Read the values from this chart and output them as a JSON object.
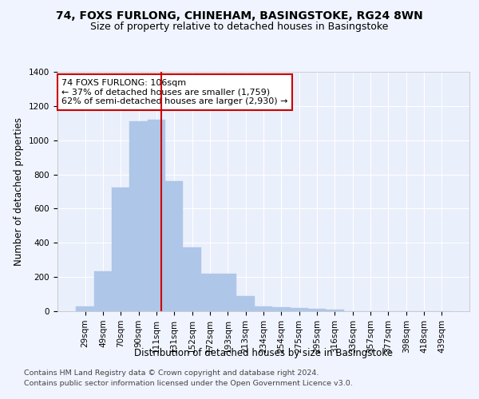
{
  "title": "74, FOXS FURLONG, CHINEHAM, BASINGSTOKE, RG24 8WN",
  "subtitle": "Size of property relative to detached houses in Basingstoke",
  "xlabel": "Distribution of detached houses by size in Basingstoke",
  "ylabel": "Number of detached properties",
  "footnote1": "Contains HM Land Registry data © Crown copyright and database right 2024.",
  "footnote2": "Contains public sector information licensed under the Open Government Licence v3.0.",
  "annotation_line1": "74 FOXS FURLONG: 106sqm",
  "annotation_line2": "← 37% of detached houses are smaller (1,759)",
  "annotation_line3": "62% of semi-detached houses are larger (2,930) →",
  "bar_labels": [
    "29sqm",
    "49sqm",
    "70sqm",
    "90sqm",
    "111sqm",
    "131sqm",
    "152sqm",
    "172sqm",
    "193sqm",
    "213sqm",
    "234sqm",
    "254sqm",
    "275sqm",
    "295sqm",
    "316sqm",
    "336sqm",
    "357sqm",
    "377sqm",
    "398sqm",
    "418sqm",
    "439sqm"
  ],
  "bar_heights": [
    30,
    235,
    725,
    1110,
    1120,
    760,
    375,
    220,
    220,
    90,
    30,
    25,
    20,
    15,
    10,
    0,
    0,
    0,
    0,
    0,
    0
  ],
  "bar_color": "#aec6e8",
  "bar_edgecolor": "#aec6e8",
  "vline_x": 4.27,
  "vline_color": "#cc0000",
  "ylim": [
    0,
    1400
  ],
  "yticks": [
    0,
    200,
    400,
    600,
    800,
    1000,
    1200,
    1400
  ],
  "background_color": "#f0f4fe",
  "axes_bg_color": "#eaeffc",
  "grid_color": "#ffffff",
  "title_fontsize": 10,
  "subtitle_fontsize": 9,
  "axis_label_fontsize": 8.5,
  "tick_fontsize": 7.5,
  "annotation_fontsize": 8,
  "footnote_fontsize": 6.8
}
